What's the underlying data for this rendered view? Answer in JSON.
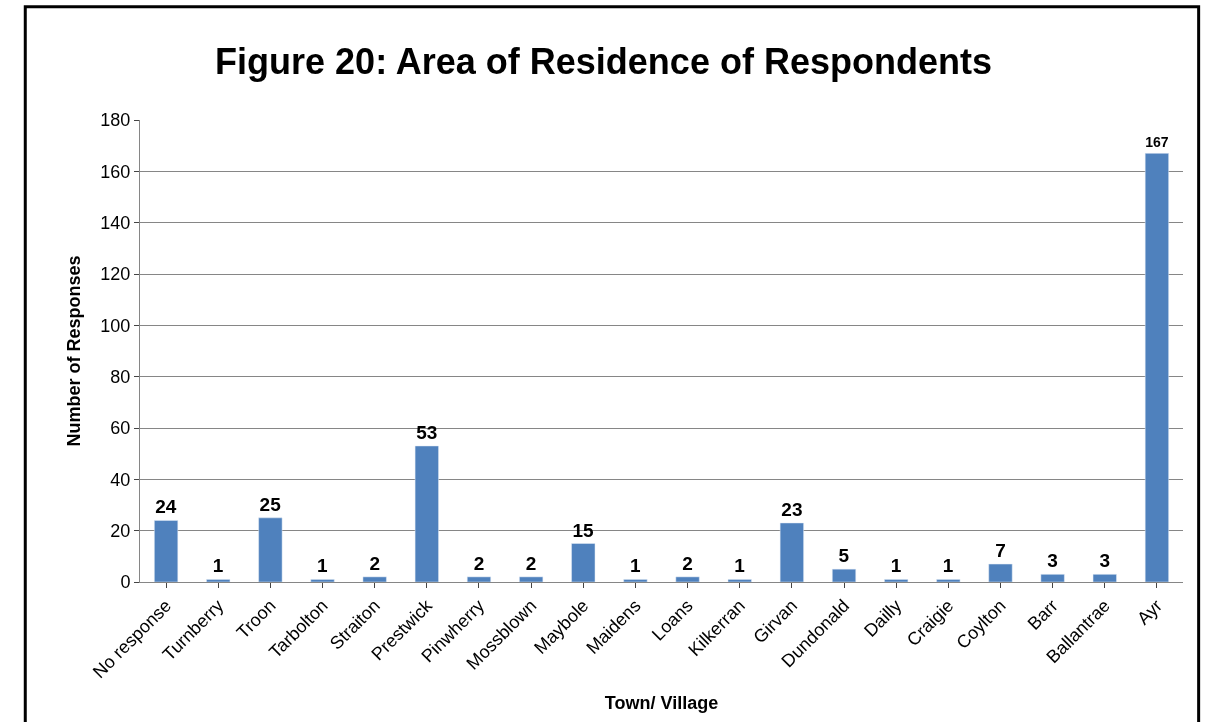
{
  "chart_data": {
    "type": "bar",
    "title": "Figure 20: Area of Residence of Respondents",
    "xlabel": "Town/ Village",
    "ylabel": "Number of Responses",
    "categories": [
      "No response",
      "Turnberry",
      "Troon",
      "Tarbolton",
      "Straiton",
      "Prestwick",
      "Pinwherry",
      "Mossblown",
      "Maybole",
      "Maidens",
      "Loans",
      "Kilkerran",
      "Girvan",
      "Dundonald",
      "Dailly",
      "Craigie",
      "Coylton",
      "Barr",
      "Ballantrae",
      "Ayr"
    ],
    "values": [
      24,
      1,
      25,
      1,
      2,
      53,
      2,
      2,
      15,
      1,
      2,
      1,
      23,
      5,
      1,
      1,
      7,
      3,
      3,
      167
    ],
    "color": "#4f81bd",
    "ylim": [
      0,
      180
    ],
    "yticks": [
      0,
      20,
      40,
      60,
      80,
      100,
      120,
      140,
      160,
      180
    ],
    "grid": "y",
    "data_labels": true,
    "legend": false
  }
}
